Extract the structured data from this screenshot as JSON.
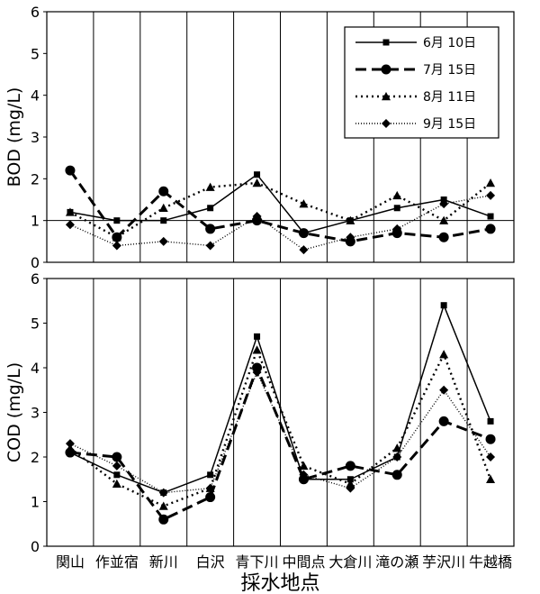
{
  "chart_data": [
    {
      "type": "line",
      "ylabel": "BOD (mg/L)",
      "ylim": [
        0,
        6
      ],
      "yticks": [
        0,
        1,
        2,
        3,
        4,
        5,
        6
      ],
      "grid": "vertical and y=1",
      "legend_placement": "top-right",
      "categories": [
        "関山",
        "作並宿",
        "新川",
        "白沢",
        "青下川",
        "中間点",
        "大倉川",
        "滝の瀬",
        "芋沢川",
        "牛越橋"
      ],
      "series": [
        {
          "name": "6月 10日",
          "style": "solid-square",
          "values": [
            1.2,
            1.0,
            1.0,
            1.3,
            2.1,
            0.7,
            1.0,
            1.3,
            1.5,
            1.1
          ]
        },
        {
          "name": "7月 15日",
          "style": "dashed-circle",
          "values": [
            2.2,
            0.6,
            1.7,
            0.8,
            1.0,
            0.7,
            0.5,
            0.7,
            0.6,
            0.8
          ]
        },
        {
          "name": "8月 11日",
          "style": "dotted-triangle",
          "values": [
            1.2,
            0.6,
            1.3,
            1.8,
            1.9,
            1.4,
            1.0,
            1.6,
            1.0,
            1.9
          ]
        },
        {
          "name": "9月 15日",
          "style": "finedot-diamond",
          "values": [
            0.9,
            0.4,
            0.5,
            0.4,
            1.1,
            0.3,
            0.6,
            0.8,
            1.4,
            1.6
          ]
        }
      ]
    },
    {
      "type": "line",
      "ylabel": "COD (mg/L)",
      "xlabel": "採水地点",
      "ylim": [
        0,
        6
      ],
      "yticks": [
        0,
        1,
        2,
        3,
        4,
        5,
        6
      ],
      "grid": "vertical",
      "categories": [
        "関山",
        "作並宿",
        "新川",
        "白沢",
        "青下川",
        "中間点",
        "大倉川",
        "滝の瀬",
        "芋沢川",
        "牛越橋"
      ],
      "series": [
        {
          "name": "6月 10日",
          "style": "solid-square",
          "values": [
            2.1,
            1.6,
            1.2,
            1.6,
            4.7,
            1.5,
            1.5,
            2.0,
            5.4,
            2.8
          ]
        },
        {
          "name": "7月 15日",
          "style": "dashed-circle",
          "values": [
            2.1,
            2.0,
            0.6,
            1.1,
            4.0,
            1.5,
            1.8,
            1.6,
            2.8,
            2.4
          ]
        },
        {
          "name": "8月 11日",
          "style": "dotted-triangle",
          "values": [
            2.2,
            1.4,
            0.9,
            1.3,
            4.4,
            1.8,
            1.4,
            2.2,
            4.3,
            1.5
          ]
        },
        {
          "name": "9月 15日",
          "style": "finedot-diamond",
          "values": [
            2.3,
            1.8,
            1.2,
            1.3,
            3.9,
            1.6,
            1.3,
            2.0,
            3.5,
            2.0
          ]
        }
      ]
    }
  ]
}
